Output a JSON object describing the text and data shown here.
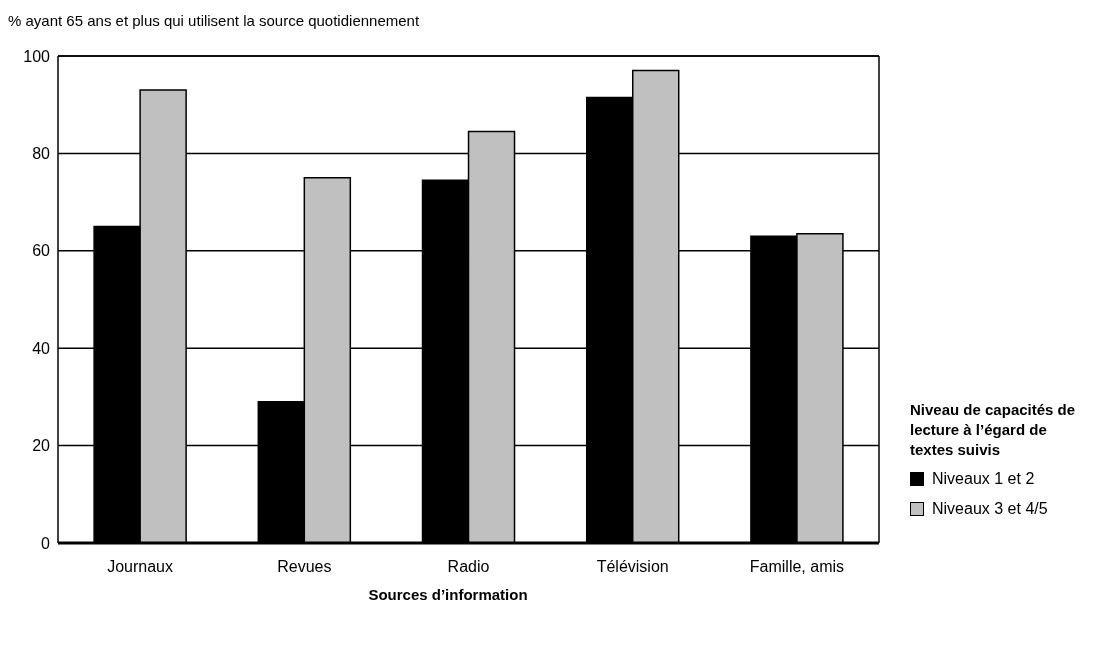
{
  "chart_data": {
    "type": "bar",
    "ylabel": "% ayant 65 ans et plus qui utilisent la source quotidiennement",
    "xlabel": "Sources d’information",
    "legend_title": "Niveau de capacités de lecture à l’égard de textes suivis",
    "categories": [
      "Journaux",
      "Revues",
      "Radio",
      "Télévision",
      "Famille, amis"
    ],
    "series": [
      {
        "name": "Niveaux 1 et 2",
        "color": "#000000",
        "values": [
          65,
          29,
          74.5,
          91.5,
          63
        ]
      },
      {
        "name": "Niveaux 3 et 4/5",
        "color": "#c0c0c0",
        "values": [
          93,
          75,
          84.5,
          97,
          63.5
        ]
      }
    ],
    "ylim": [
      0,
      100
    ],
    "yticks": [
      0,
      20,
      40,
      60,
      80,
      100
    ],
    "grid": "y",
    "legend": "right"
  }
}
